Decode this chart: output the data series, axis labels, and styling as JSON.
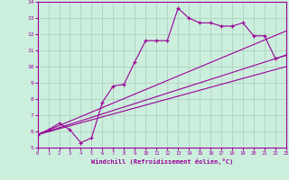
{
  "xlabel": "Windchill (Refroidissement éolien,°C)",
  "xlim": [
    0,
    23
  ],
  "ylim": [
    5,
    14
  ],
  "xticks": [
    0,
    1,
    2,
    3,
    4,
    5,
    6,
    7,
    8,
    9,
    10,
    11,
    12,
    13,
    14,
    15,
    16,
    17,
    18,
    19,
    20,
    21,
    22,
    23
  ],
  "yticks": [
    5,
    6,
    7,
    8,
    9,
    10,
    11,
    12,
    13,
    14
  ],
  "bg_color": "#cceedd",
  "line_color": "#990099",
  "grid_color": "#aaccbb",
  "line1_x": [
    0,
    1,
    2,
    3,
    4,
    5,
    6,
    7,
    8,
    9,
    10,
    11,
    12,
    13,
    14,
    15,
    16,
    17,
    18,
    19,
    20,
    21,
    22,
    23
  ],
  "line1_y": [
    5.8,
    6.1,
    6.5,
    6.1,
    5.3,
    5.6,
    7.8,
    8.8,
    8.9,
    10.3,
    11.6,
    11.6,
    11.6,
    13.6,
    13.0,
    12.7,
    12.7,
    12.5,
    12.5,
    12.7,
    11.9,
    11.9,
    10.5,
    10.7
  ],
  "line2_x": [
    0,
    23
  ],
  "line2_y": [
    5.8,
    10.7
  ],
  "line3_x": [
    0,
    23
  ],
  "line3_y": [
    5.8,
    12.2
  ],
  "line4_x": [
    0,
    23
  ],
  "line4_y": [
    5.8,
    10.0
  ]
}
